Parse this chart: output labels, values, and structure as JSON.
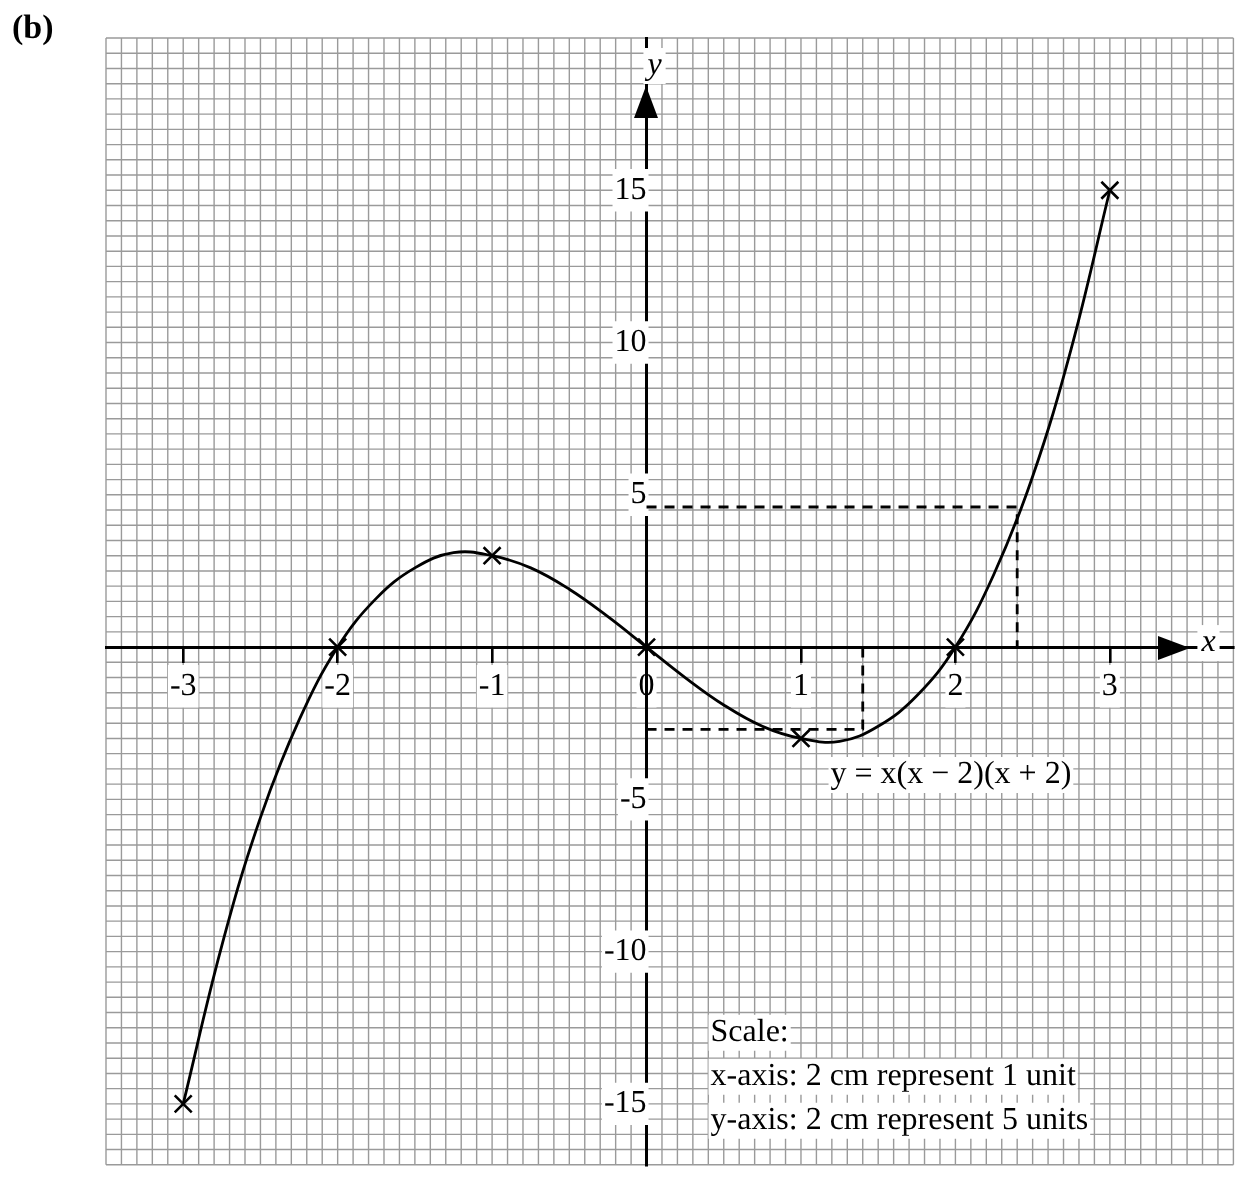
{
  "chart_data": {
    "type": "line",
    "title": "(b)",
    "xlabel": "x",
    "ylabel": "y",
    "xlim": [
      -3.5,
      3.8
    ],
    "ylim": [
      -17,
      20
    ],
    "xticks": [
      -3,
      -2,
      -1,
      0,
      1,
      2,
      3
    ],
    "yticks": [
      -15,
      -10,
      -5,
      5,
      10,
      15
    ],
    "grid": true,
    "legend": false,
    "series": [
      {
        "type": "line",
        "color": "#000000",
        "line_style": "solid",
        "marker": "none",
        "x": [
          -3,
          -2.75,
          -2.5,
          -2.25,
          -2,
          -1.75,
          -1.5,
          -1.25,
          -1,
          -0.75,
          -0.5,
          -0.25,
          0,
          0.25,
          0.5,
          0.75,
          1,
          1.25,
          1.5,
          1.75,
          2,
          2.25,
          2.5,
          2.75,
          3
        ],
        "values": [
          -15,
          -9.8,
          -5.6,
          -2.4,
          0,
          1.6,
          2.6,
          3.1,
          3,
          2.6,
          1.9,
          1,
          0,
          -1,
          -1.9,
          -2.6,
          -3,
          -3.1,
          -2.6,
          -1.6,
          0,
          2.4,
          5.6,
          9.8,
          15
        ]
      },
      {
        "type": "scatter",
        "color": "#000000",
        "marker": "cross",
        "x": [
          -3,
          -2,
          -1,
          0,
          1,
          2,
          3
        ],
        "values": [
          -15,
          0,
          3,
          0,
          -3,
          0,
          15
        ]
      },
      {
        "type": "line",
        "color": "#000000",
        "line_style": "dashed",
        "marker": "none",
        "x": [
          0,
          1.4,
          1.4
        ],
        "values": [
          -2.7,
          -2.7,
          0
        ]
      },
      {
        "type": "line",
        "color": "#000000",
        "line_style": "dashed",
        "marker": "none",
        "x": [
          0,
          2.4,
          2.4
        ],
        "values": [
          4.6,
          4.6,
          0
        ]
      }
    ],
    "annotations": [
      "y = x(x − 2)(x + 2)",
      "Scale:",
      "x-axis: 2 cm represent 1 unit",
      "y-axis: 2 cm represent 5 units"
    ]
  }
}
